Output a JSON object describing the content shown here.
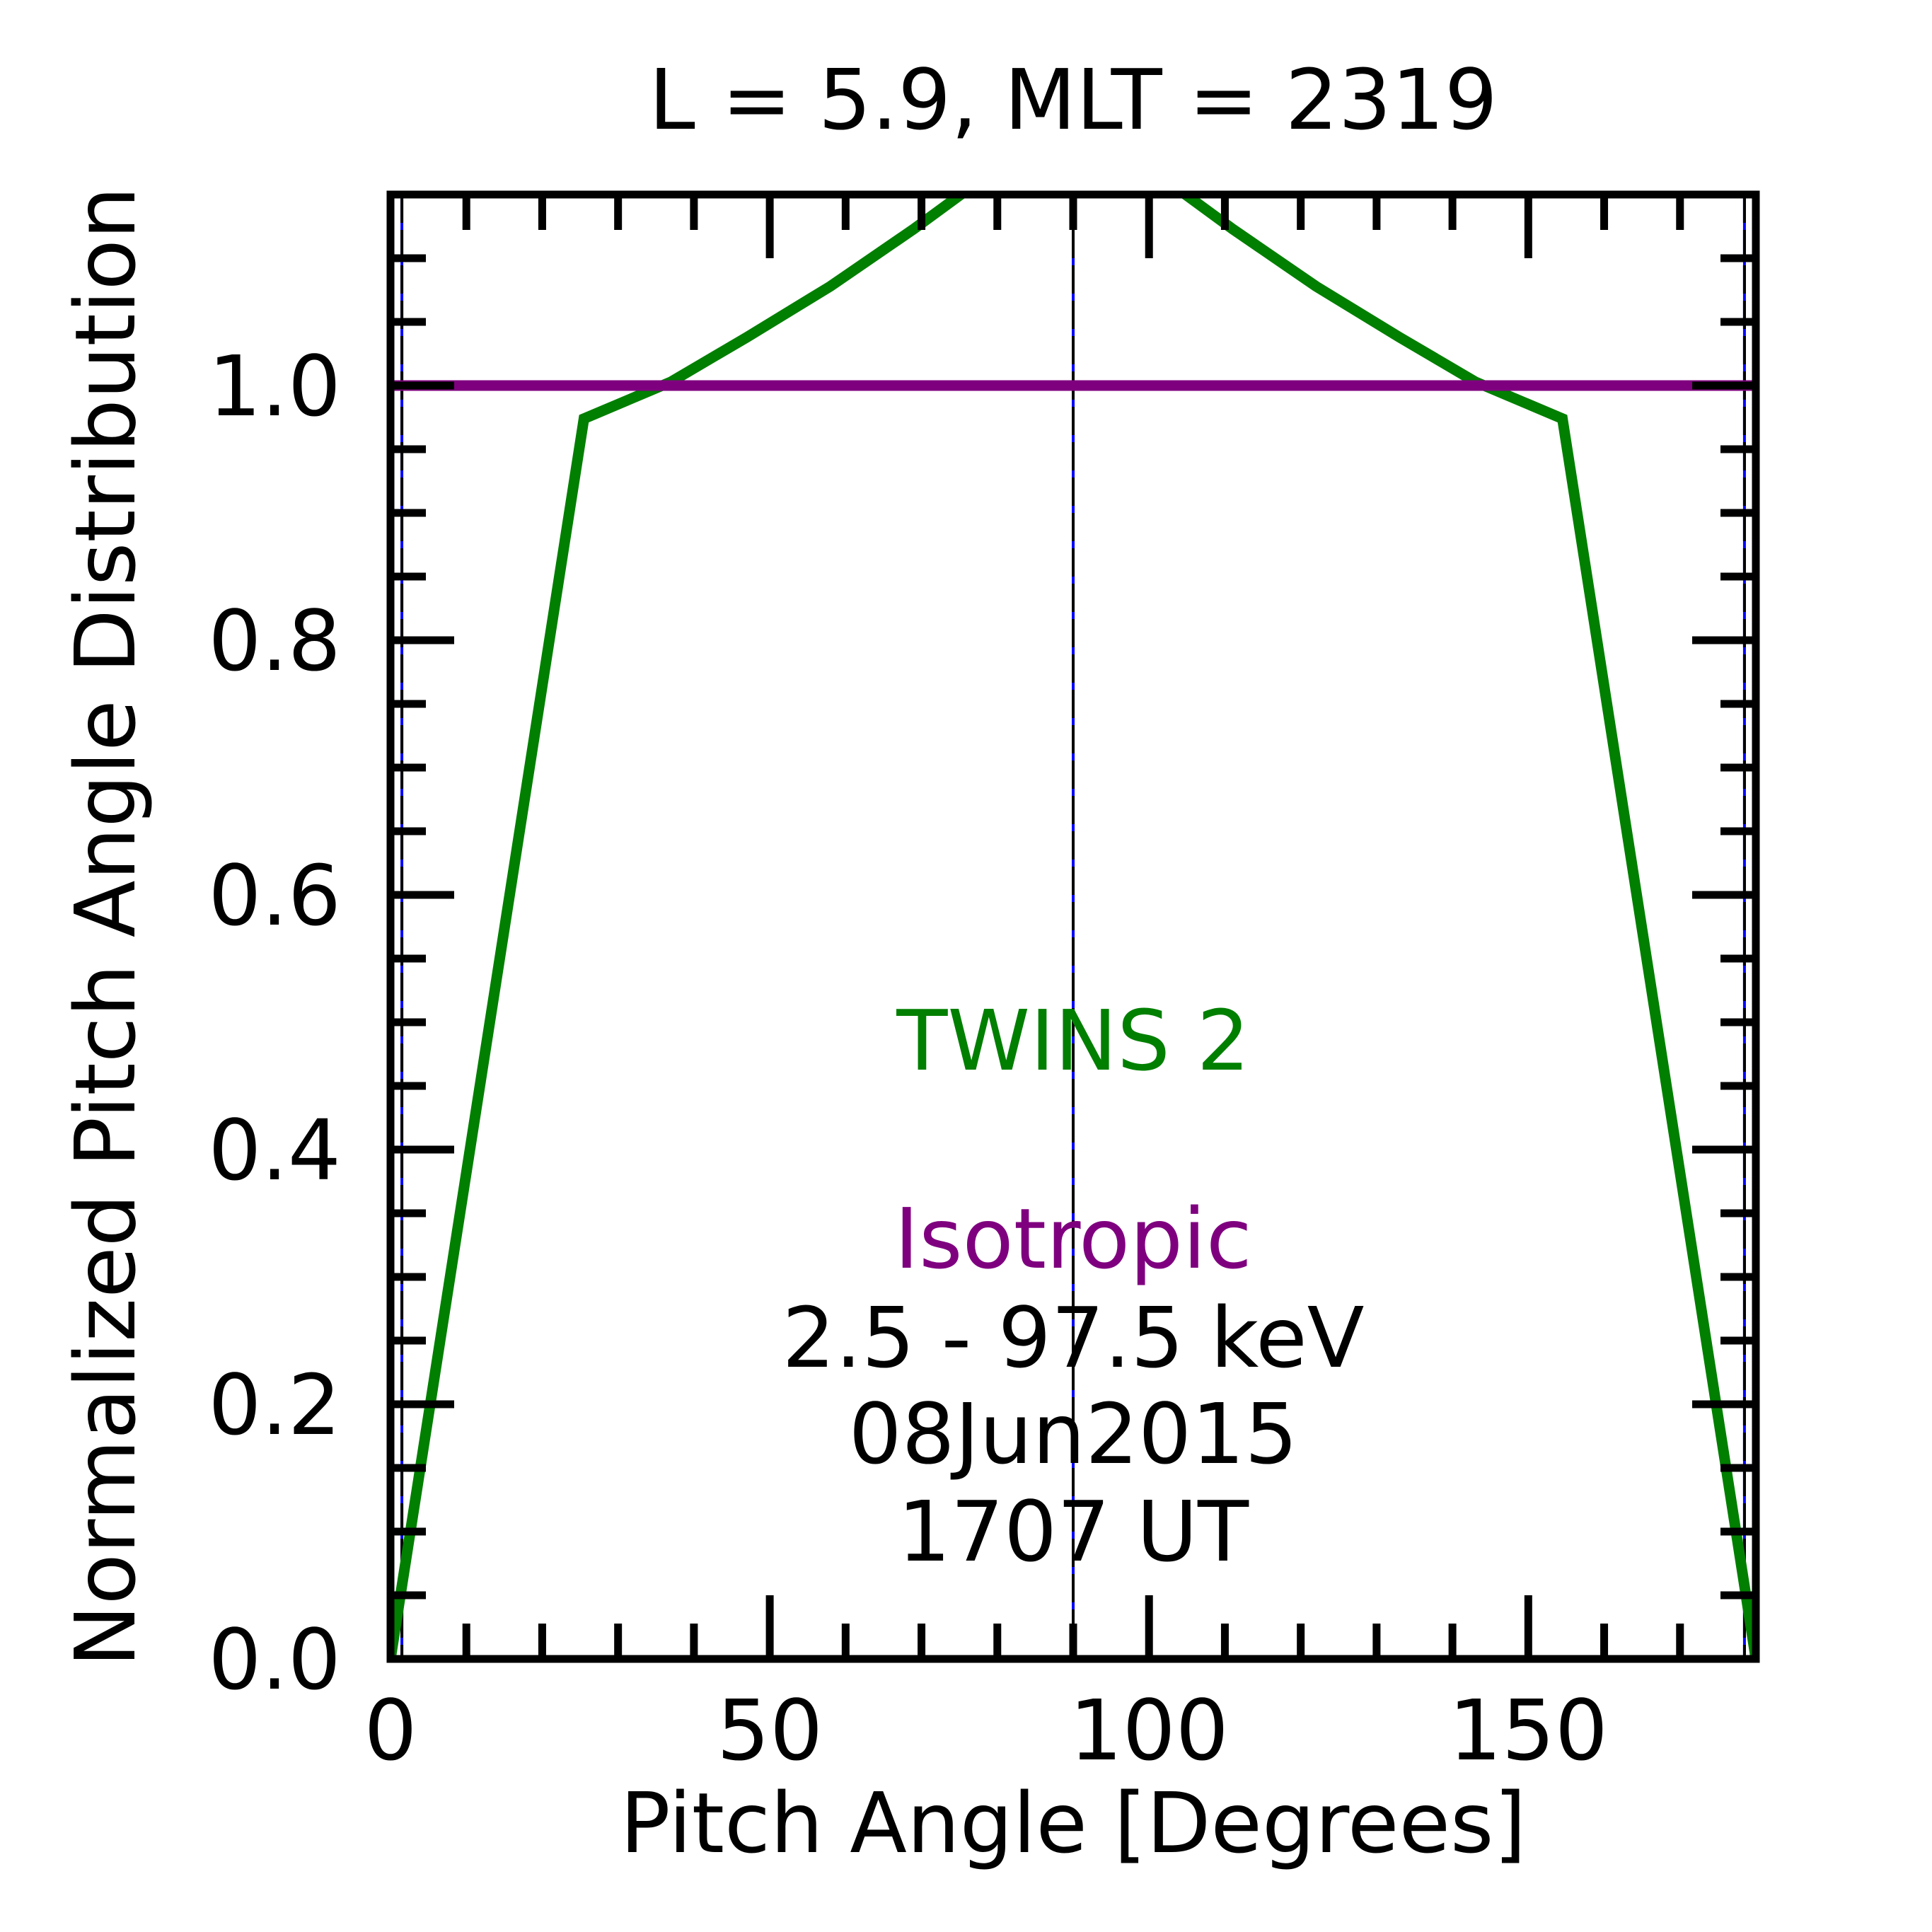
{
  "chart_data": {
    "type": "line",
    "title": "L =  5.9, MLT = 2319",
    "xlabel": "Pitch Angle [Degrees]",
    "ylabel": "Normalized Pitch Angle Distribution",
    "xlim": [
      0,
      180
    ],
    "ylim": [
      0,
      1.15
    ],
    "x_ticks": [
      0,
      50,
      100,
      150
    ],
    "x_tick_labels": [
      "0",
      "50",
      "100",
      "150"
    ],
    "y_ticks": [
      0,
      0.2,
      0.4,
      0.6,
      0.8,
      1.0
    ],
    "y_tick_labels": [
      "0.0",
      "0.2",
      "0.4",
      "0.6",
      "0.8",
      "1.0"
    ],
    "grid": false,
    "series": [
      {
        "name": "TWINS 2",
        "color": "#007f00",
        "x": [
          0,
          25.5,
          37,
          47,
          58,
          69,
          80,
          90,
          100,
          111,
          122,
          133,
          143,
          154.5,
          180
        ],
        "y": [
          0,
          0.974,
          1.003,
          1.038,
          1.078,
          1.123,
          1.171,
          1.223,
          1.171,
          1.123,
          1.078,
          1.038,
          1.003,
          0.974,
          0
        ]
      },
      {
        "name": "Isotropic",
        "color": "#7f007f",
        "x": [
          0,
          180
        ],
        "y": [
          1.0,
          1.0
        ]
      }
    ],
    "vertical_lines": [
      {
        "x": 1.5,
        "color": "#0000ff"
      },
      {
        "x": 90,
        "color": "#0000ff"
      },
      {
        "x": 178.5,
        "color": "#0000ff"
      }
    ],
    "annotations": {
      "energy": "2.5 - 97.5 keV",
      "date": "08Jun2015",
      "time": "1707 UT"
    },
    "legend_placement": "center-bottom"
  }
}
